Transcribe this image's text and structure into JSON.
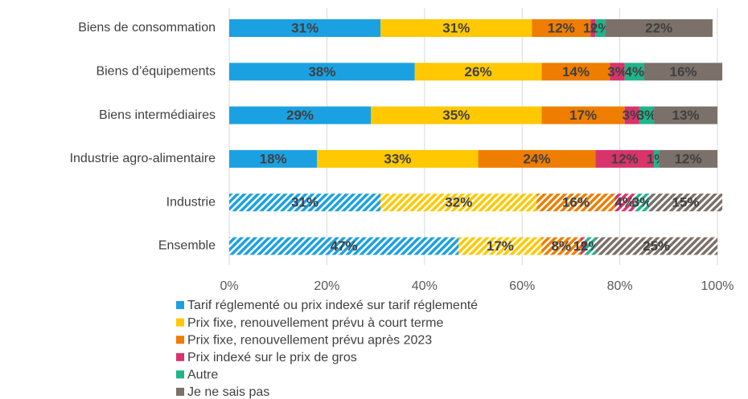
{
  "chart_data": {
    "type": "stacked_barh",
    "categories": [
      "Biens de consommation",
      "Biens d’équipements",
      "Biens intermédiaires",
      "Industrie agro-alimentaire",
      "Industrie",
      "Ensemble"
    ],
    "hatched": [
      false,
      false,
      false,
      false,
      true,
      true
    ],
    "series": [
      {
        "name": "Tarif réglementé ou prix indexé sur tarif réglementé",
        "color": "#1ba1e2",
        "values": [
          31,
          38,
          29,
          18,
          31,
          47
        ],
        "value_labels": [
          "31%",
          "38%",
          "29%",
          "18%",
          "31%",
          "47%"
        ]
      },
      {
        "name": "Prix fixe, renouvellement prévu à court terme",
        "color": "#ffc800",
        "values": [
          31,
          26,
          35,
          33,
          32,
          17
        ],
        "value_labels": [
          "31%",
          "26%",
          "35%",
          "33%",
          "32%",
          "17%"
        ]
      },
      {
        "name": "Prix fixe, renouvellement prévu après 2023",
        "color": "#ee7d00",
        "values": [
          12,
          14,
          17,
          24,
          16,
          8
        ],
        "value_labels": [
          "12%",
          "14%",
          "17%",
          "24%",
          "16%",
          "8%"
        ]
      },
      {
        "name": "Prix indexé sur le prix de gros",
        "color": "#d8336a",
        "values": [
          1,
          3,
          3,
          12,
          4,
          1
        ],
        "value_labels": [
          "1%",
          "3%",
          "3%",
          "12%",
          "4%",
          "1%"
        ]
      },
      {
        "name": "Autre",
        "color": "#21b38a",
        "values": [
          2,
          4,
          3,
          1,
          3,
          2
        ],
        "value_labels": [
          "2%",
          "4%",
          "3%",
          "1%",
          "3%",
          "2%"
        ]
      },
      {
        "name": "Je ne sais pas",
        "color": "#7b716a",
        "values": [
          22,
          16,
          13,
          12,
          15,
          25
        ],
        "value_labels": [
          "22%",
          "16%",
          "13%",
          "12%",
          "15%",
          "25%"
        ]
      }
    ],
    "xlim": [
      0,
      100
    ],
    "xticks": [
      {
        "value": 0,
        "label": "0%"
      },
      {
        "value": 20,
        "label": "20%"
      },
      {
        "value": 40,
        "label": "40%"
      },
      {
        "value": 60,
        "label": "60%"
      },
      {
        "value": 80,
        "label": "80%"
      },
      {
        "value": 100,
        "label": "100%"
      }
    ],
    "grid": true
  }
}
